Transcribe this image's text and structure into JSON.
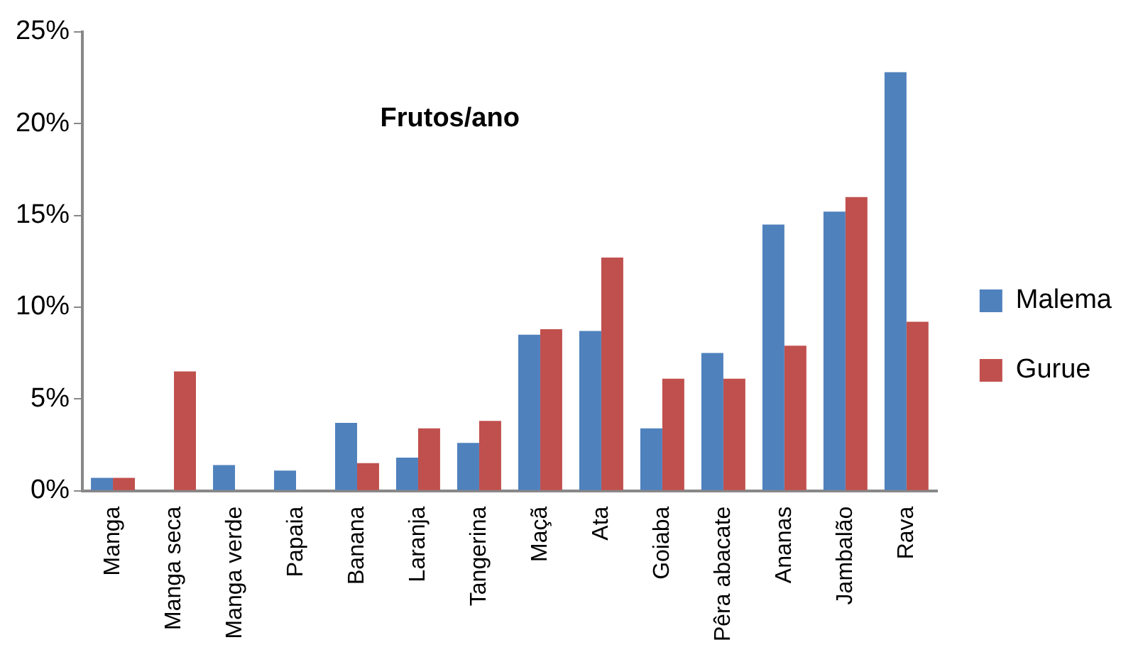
{
  "chart_data": {
    "type": "bar",
    "title": "Frutos/ano",
    "categories": [
      "Manga",
      "Manga seca",
      "Manga verde",
      "Papaia",
      "Banana",
      "Laranja",
      "Tangerina",
      "Maçã",
      "Ata",
      "Goiaba",
      "Pêra abacate",
      "Ananas",
      "Jambalão",
      "Rava"
    ],
    "series": [
      {
        "name": "Malema",
        "color": "#4f81bd",
        "values": [
          0.7,
          0,
          1.4,
          1.1,
          3.7,
          1.8,
          2.6,
          8.5,
          8.7,
          3.4,
          7.5,
          14.5,
          15.2,
          22.8
        ]
      },
      {
        "name": "Gurue",
        "color": "#c0504d",
        "values": [
          0.7,
          6.5,
          0,
          0,
          1.5,
          3.4,
          3.8,
          8.8,
          12.7,
          6.1,
          6.1,
          7.9,
          16.0,
          9.2
        ]
      }
    ],
    "ylim": [
      0,
      25
    ],
    "yticks": [
      {
        "value": 0,
        "label": "0%"
      },
      {
        "value": 5,
        "label": "5%"
      },
      {
        "value": 10,
        "label": "10%"
      },
      {
        "value": 15,
        "label": "15%"
      },
      {
        "value": 20,
        "label": "20%"
      },
      {
        "value": 25,
        "label": "25%"
      }
    ],
    "grid": false,
    "legend": "right"
  }
}
